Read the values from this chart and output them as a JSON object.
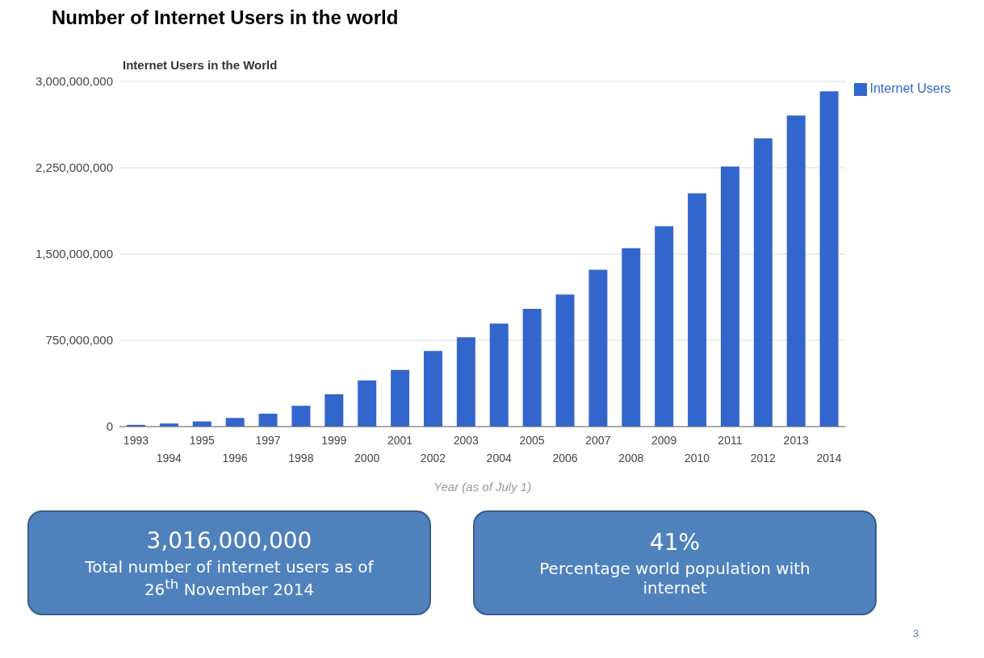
{
  "chart_data": {
    "type": "bar",
    "title": "Number of Internet Users in the world",
    "subtitle": "Internet Users in the World",
    "xlabel": "Year (as of July 1)",
    "categories": [
      "1993",
      "1994",
      "1995",
      "1996",
      "1997",
      "1998",
      "1999",
      "2000",
      "2001",
      "2002",
      "2003",
      "2004",
      "2005",
      "2006",
      "2007",
      "2008",
      "2009",
      "2010",
      "2011",
      "2012",
      "2013",
      "2014"
    ],
    "series": [
      {
        "name": "Internet Users",
        "color": "#3366cc",
        "values": [
          15000000,
          27000000,
          45000000,
          75000000,
          112000000,
          181000000,
          281000000,
          401000000,
          492000000,
          658000000,
          776000000,
          896000000,
          1023000000,
          1147000000,
          1364000000,
          1551000000,
          1742000000,
          2028000000,
          2261000000,
          2505000000,
          2704000000,
          2915000000
        ]
      }
    ],
    "ylim": [
      0,
      3000000000
    ],
    "yticks": [
      0,
      {
        "value": 750000000,
        "label": "750,000,000"
      },
      {
        "value": 1500000000,
        "label": "1,500,000,000"
      },
      {
        "value": 2250000000,
        "label": "2,250,000,000"
      },
      {
        "value": 3000000000,
        "label": "3,000,000,000"
      }
    ],
    "grid": "y",
    "legend": "top right",
    "annotations": [
      "3,016,000,000",
      "Total number of internet users as of 26$^{th}$ November 2014",
      "41%",
      "Percentage world population with internet",
      "3"
    ]
  }
}
